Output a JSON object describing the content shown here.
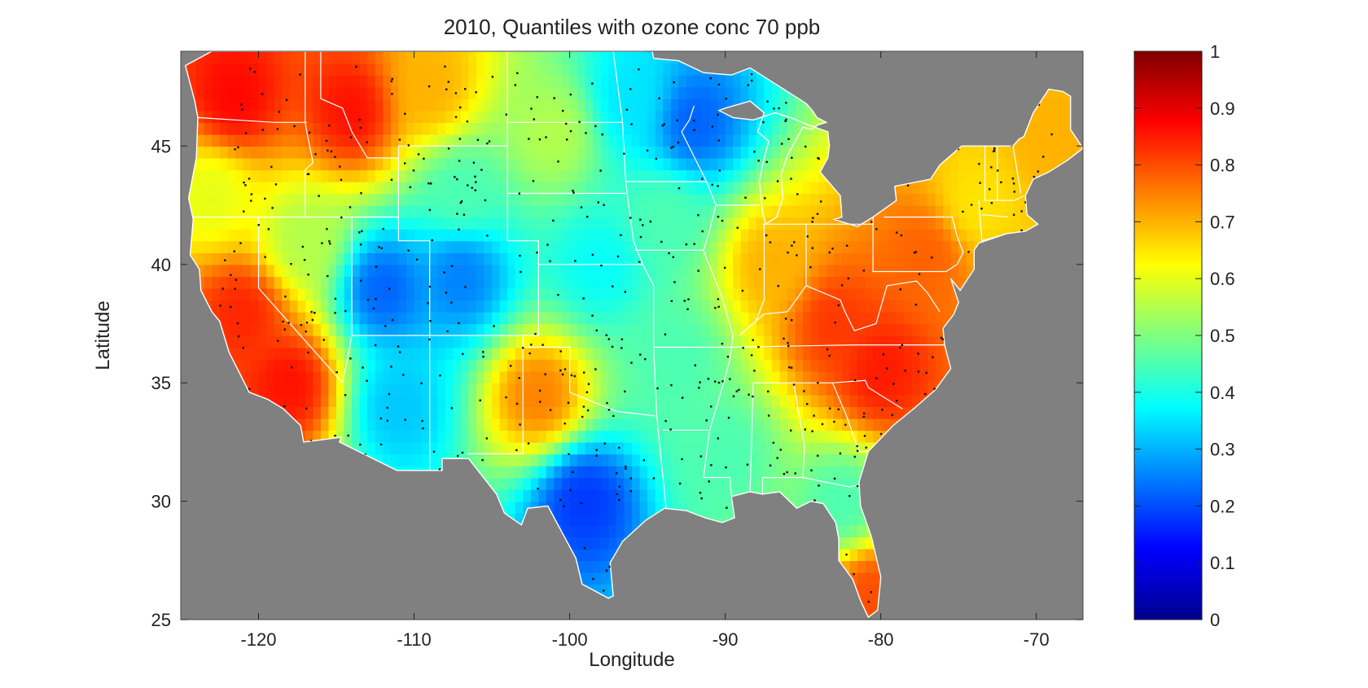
{
  "figure": {
    "title": "2010, Quantiles with ozone conc 70 ppb",
    "xlabel": "Longitude",
    "ylabel": "Latitude"
  },
  "map": {
    "projection": "equirectangular",
    "xlim": [
      -125,
      -67
    ],
    "ylim": [
      25,
      49
    ],
    "x_ticks": [
      -120,
      -110,
      -100,
      -90,
      -80,
      -70
    ],
    "x_tick_labels": [
      "-120",
      "-110",
      "-100",
      "-90",
      "-80",
      "-70"
    ],
    "y_ticks": [
      25,
      30,
      35,
      40,
      45
    ],
    "y_tick_labels": [
      "25",
      "30",
      "35",
      "40",
      "45"
    ],
    "background_color": "#808080",
    "boundary_color": "#ffffff",
    "site_marker_color": "#111111"
  },
  "colorbar": {
    "colormap": "jet",
    "range": [
      0,
      1
    ],
    "ticks": [
      0,
      0.1,
      0.2,
      0.3,
      0.4,
      0.5,
      0.6,
      0.7,
      0.8,
      0.9,
      1
    ],
    "tick_labels": [
      "0",
      "0.1",
      "0.2",
      "0.3",
      "0.4",
      "0.5",
      "0.6",
      "0.7",
      "0.8",
      "0.9",
      "1"
    ]
  },
  "chart_data": {
    "type": "heatmap",
    "title": "2010, Quantiles with ozone conc 70 ppb",
    "xlabel": "Longitude",
    "ylabel": "Latitude",
    "xlim": [
      -125,
      -67
    ],
    "ylim": [
      25,
      49
    ],
    "value_range": [
      0,
      1
    ],
    "colormap": "jet",
    "field_control_points": [
      {
        "lon": -121.5,
        "lat": 47.0,
        "value": 0.87
      },
      {
        "lon": -114.0,
        "lat": 46.5,
        "value": 0.86
      },
      {
        "lon": -109.0,
        "lat": 47.5,
        "value": 0.7
      },
      {
        "lon": -123.0,
        "lat": 43.0,
        "value": 0.6
      },
      {
        "lon": -121.0,
        "lat": 38.0,
        "value": 0.84
      },
      {
        "lon": -118.0,
        "lat": 35.0,
        "value": 0.86
      },
      {
        "lon": -117.0,
        "lat": 41.0,
        "value": 0.55
      },
      {
        "lon": -112.0,
        "lat": 39.0,
        "value": 0.22
      },
      {
        "lon": -107.0,
        "lat": 39.5,
        "value": 0.25
      },
      {
        "lon": -107.0,
        "lat": 43.0,
        "value": 0.45
      },
      {
        "lon": -101.0,
        "lat": 45.5,
        "value": 0.55
      },
      {
        "lon": -96.0,
        "lat": 47.0,
        "value": 0.35
      },
      {
        "lon": -92.0,
        "lat": 46.0,
        "value": 0.22
      },
      {
        "lon": -94.0,
        "lat": 42.0,
        "value": 0.45
      },
      {
        "lon": -98.0,
        "lat": 40.0,
        "value": 0.38
      },
      {
        "lon": -111.0,
        "lat": 34.0,
        "value": 0.32
      },
      {
        "lon": -102.0,
        "lat": 34.5,
        "value": 0.75
      },
      {
        "lon": -99.0,
        "lat": 30.0,
        "value": 0.18
      },
      {
        "lon": -93.0,
        "lat": 36.0,
        "value": 0.45
      },
      {
        "lon": -90.0,
        "lat": 32.0,
        "value": 0.45
      },
      {
        "lon": -87.0,
        "lat": 40.0,
        "value": 0.7
      },
      {
        "lon": -83.0,
        "lat": 37.5,
        "value": 0.82
      },
      {
        "lon": -80.0,
        "lat": 35.5,
        "value": 0.85
      },
      {
        "lon": -77.0,
        "lat": 40.5,
        "value": 0.78
      },
      {
        "lon": -74.0,
        "lat": 42.5,
        "value": 0.65
      },
      {
        "lon": -69.0,
        "lat": 45.5,
        "value": 0.7
      },
      {
        "lon": -82.5,
        "lat": 30.0,
        "value": 0.45
      },
      {
        "lon": -80.5,
        "lat": 26.0,
        "value": 0.8
      }
    ]
  }
}
